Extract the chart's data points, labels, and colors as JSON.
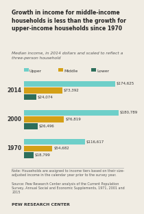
{
  "title": "Growth in income for middle-income\nhouseholds is less than the growth for\nupper-income households since 1970",
  "subtitle": "Median income, in 2014 dollars and scaled to reflect a\nthree-person household",
  "years": [
    "2014",
    "2000",
    "1970"
  ],
  "categories": [
    "Upper",
    "Middle",
    "Lower"
  ],
  "values": {
    "2014": [
      174625,
      73392,
      24074
    ],
    "2000": [
      180789,
      76819,
      26496
    ],
    "1970": [
      116617,
      54682,
      18799
    ]
  },
  "colors": [
    "#6ecfc9",
    "#d4a017",
    "#2d6e5b"
  ],
  "note_text": "Note: Households are assigned to income tiers based on their size-\nadjusted income in the calendar year prior to the survey year.",
  "source_text": "Source: Pew Research Center analysis of the Current Population\nSurvey, Annual Social and Economic Supplements, 1971, 2001 and\n2015",
  "footer_text": "PEW RESEARCH CENTER",
  "bg_color": "#f0ece3",
  "max_val": 190000
}
